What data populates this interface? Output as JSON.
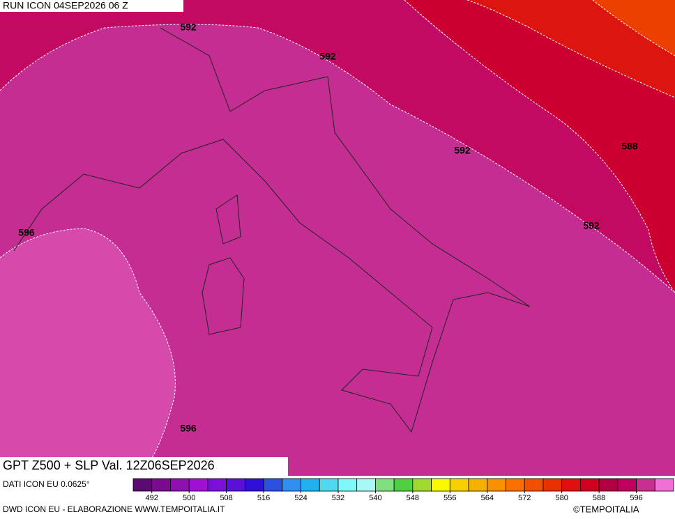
{
  "header": {
    "run": "RUN ICON 04SEP2026 06 Z"
  },
  "map": {
    "title": "GPT Z500 + SLP Val. 12Z06SEP2026",
    "contour_labels": [
      "592",
      "592",
      "592",
      "588",
      "592",
      "596",
      "596"
    ]
  },
  "footer": {
    "source": "DATI ICON EU 0.0625°",
    "credit": "DWD ICON EU - ELABORAZIONE WWW.TEMPOITALIA.IT",
    "copyright": "©TEMPOITALIA"
  },
  "colorbar": {
    "range": [
      488,
      604
    ],
    "ticks": [
      492,
      500,
      508,
      516,
      524,
      532,
      540,
      548,
      556,
      564,
      572,
      580,
      588,
      596
    ],
    "colors": [
      "#5a0a6e",
      "#7a0a8e",
      "#8e10b0",
      "#a010d0",
      "#7a10d8",
      "#5a10d8",
      "#3010d8",
      "#2a50e0",
      "#3090f0",
      "#20b0f0",
      "#50d8f0",
      "#80f8f8",
      "#a8f8f8",
      "#80e080",
      "#50d040",
      "#a0d830",
      "#f8f800",
      "#f8d000",
      "#f8b000",
      "#f89000",
      "#f87000",
      "#f05000",
      "#e83000",
      "#e01010",
      "#d00020",
      "#b00040",
      "#c00060",
      "#c83090",
      "#f070d8"
    ]
  }
}
